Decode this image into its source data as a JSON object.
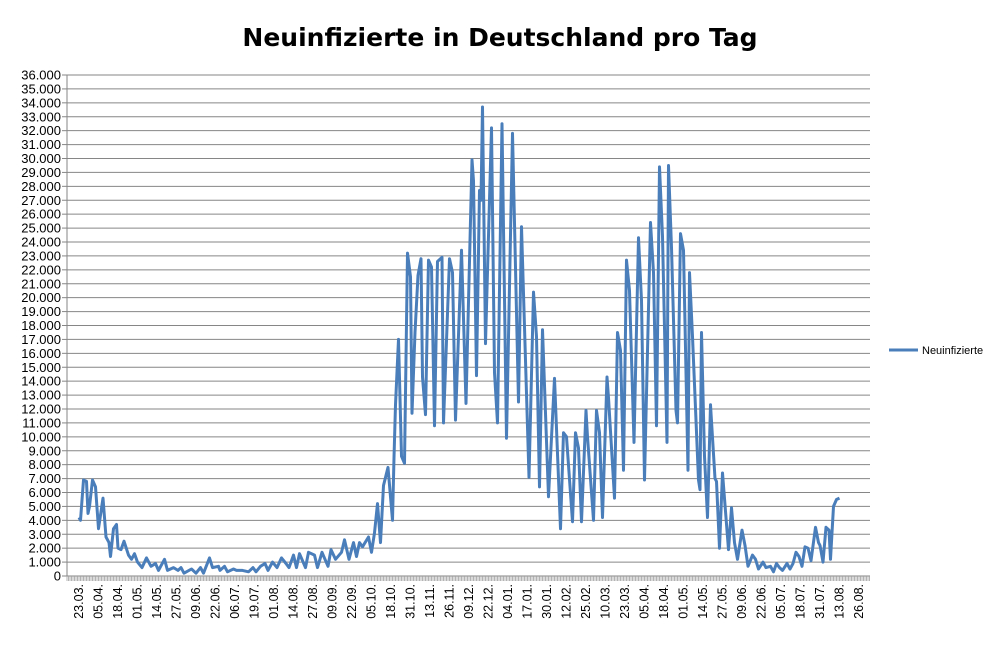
{
  "chart_data": {
    "type": "line",
    "title": "Neuinfizierte in Deutschland pro Tag",
    "xlabel": "",
    "ylabel": "",
    "ylim": [
      0,
      36000
    ],
    "grid": true,
    "legend_position": "right",
    "line_color": "#4A7EBB",
    "grid_color": "#868686",
    "y_tick_labels": [
      "0",
      "1.000",
      "2.000",
      "3.000",
      "4.000",
      "5.000",
      "6.000",
      "7.000",
      "8.000",
      "9.000",
      "10.000",
      "11.000",
      "12.000",
      "13.000",
      "14.000",
      "15.000",
      "16.000",
      "17.000",
      "18.000",
      "19.000",
      "20.000",
      "21.000",
      "22.000",
      "23.000",
      "24.000",
      "25.000",
      "26.000",
      "27.000",
      "28.000",
      "29.000",
      "30.000",
      "31.000",
      "32.000",
      "33.000",
      "34.000",
      "35.000",
      "36.000"
    ],
    "x_tick_labels": [
      "23.03.",
      "05.04.",
      "18.04.",
      "01.05.",
      "14.05.",
      "27.05.",
      "09.06.",
      "22.06.",
      "06.07.",
      "19.07.",
      "01.08.",
      "14.08.",
      "27.08.",
      "09.09.",
      "22.09.",
      "05.10.",
      "18.10.",
      "31.10.",
      "13.11.",
      "26.11.",
      "09.12.",
      "22.12.",
      "04.01.",
      "17.01.",
      "30.01.",
      "12.02.",
      "25.02.",
      "10.03.",
      "23.03.",
      "05.04.",
      "18.04.",
      "01.05.",
      "14.05.",
      "27.05.",
      "09.06.",
      "22.06.",
      "05.07.",
      "18.07.",
      "31.07.",
      "13.08.",
      "26.08."
    ],
    "x": [
      "2020-03-23",
      "2020-03-24",
      "2020-03-26",
      "2020-03-28",
      "2020-03-29",
      "2020-03-30",
      "2020-04-01",
      "2020-04-03",
      "2020-04-05",
      "2020-04-08",
      "2020-04-10",
      "2020-04-12",
      "2020-04-13",
      "2020-04-15",
      "2020-04-17",
      "2020-04-18",
      "2020-04-20",
      "2020-04-22",
      "2020-04-25",
      "2020-04-27",
      "2020-04-29",
      "2020-05-01",
      "2020-05-04",
      "2020-05-07",
      "2020-05-10",
      "2020-05-13",
      "2020-05-15",
      "2020-05-19",
      "2020-05-21",
      "2020-05-25",
      "2020-05-28",
      "2020-05-30",
      "2020-06-01",
      "2020-06-06",
      "2020-06-09",
      "2020-06-12",
      "2020-06-14",
      "2020-06-18",
      "2020-06-20",
      "2020-06-24",
      "2020-06-25",
      "2020-06-28",
      "2020-06-30",
      "2020-07-04",
      "2020-07-06",
      "2020-07-10",
      "2020-07-14",
      "2020-07-17",
      "2020-07-19",
      "2020-07-22",
      "2020-07-25",
      "2020-07-27",
      "2020-07-30",
      "2020-08-02",
      "2020-08-05",
      "2020-08-08",
      "2020-08-10",
      "2020-08-13",
      "2020-08-15",
      "2020-08-17",
      "2020-08-21",
      "2020-08-23",
      "2020-08-27",
      "2020-08-29",
      "2020-09-01",
      "2020-09-05",
      "2020-09-07",
      "2020-09-10",
      "2020-09-14",
      "2020-09-16",
      "2020-09-19",
      "2020-09-22",
      "2020-09-24",
      "2020-09-26",
      "2020-09-28",
      "2020-10-02",
      "2020-10-04",
      "2020-10-06",
      "2020-10-08",
      "2020-10-10",
      "2020-10-12",
      "2020-10-15",
      "2020-10-18",
      "2020-10-19",
      "2020-10-20",
      "2020-10-22",
      "2020-10-24",
      "2020-10-26",
      "2020-10-28",
      "2020-10-30",
      "2020-10-31",
      "2020-11-02",
      "2020-11-04",
      "2020-11-06",
      "2020-11-07",
      "2020-11-09",
      "2020-11-11",
      "2020-11-13",
      "2020-11-15",
      "2020-11-17",
      "2020-11-20",
      "2020-11-21",
      "2020-11-25",
      "2020-11-27",
      "2020-11-29",
      "2020-12-03",
      "2020-12-06",
      "2020-12-10",
      "2020-12-11",
      "2020-12-13",
      "2020-12-15",
      "2020-12-16",
      "2020-12-17",
      "2020-12-19",
      "2020-12-23",
      "2020-12-25",
      "2020-12-27",
      "2020-12-30",
      "2021-01-02",
      "2021-01-06",
      "2021-01-10",
      "2021-01-12",
      "2021-01-17",
      "2021-01-20",
      "2021-01-22",
      "2021-01-24",
      "2021-01-26",
      "2021-01-30",
      "2021-02-03",
      "2021-02-07",
      "2021-02-09",
      "2021-02-11",
      "2021-02-15",
      "2021-02-17",
      "2021-02-19",
      "2021-02-21",
      "2021-02-24",
      "2021-02-25",
      "2021-03-01",
      "2021-03-03",
      "2021-03-05",
      "2021-03-07",
      "2021-03-10",
      "2021-03-11",
      "2021-03-15",
      "2021-03-17",
      "2021-03-19",
      "2021-03-21",
      "2021-03-23",
      "2021-03-25",
      "2021-03-28",
      "2021-03-31",
      "2021-04-02",
      "2021-04-04",
      "2021-04-08",
      "2021-04-10",
      "2021-04-12",
      "2021-04-14",
      "2021-04-16",
      "2021-04-19",
      "2021-04-20",
      "2021-04-22",
      "2021-04-25",
      "2021-04-26",
      "2021-04-28",
      "2021-04-30",
      "2021-05-03",
      "2021-05-04",
      "2021-05-06",
      "2021-05-10",
      "2021-05-11",
      "2021-05-12",
      "2021-05-14",
      "2021-05-16",
      "2021-05-18",
      "2021-05-21",
      "2021-05-22",
      "2021-05-24",
      "2021-05-26",
      "2021-05-30",
      "2021-06-01",
      "2021-06-03",
      "2021-06-05",
      "2021-06-08",
      "2021-06-10",
      "2021-06-12",
      "2021-06-15",
      "2021-06-17",
      "2021-06-19",
      "2021-06-22",
      "2021-06-24",
      "2021-06-27",
      "2021-06-29",
      "2021-07-01",
      "2021-07-03",
      "2021-07-05",
      "2021-07-08",
      "2021-07-10",
      "2021-07-12",
      "2021-07-14",
      "2021-07-16",
      "2021-07-18",
      "2021-07-20",
      "2021-07-22",
      "2021-07-24",
      "2021-07-27",
      "2021-07-29",
      "2021-07-30",
      "2021-08-01",
      "2021-08-03",
      "2021-08-05",
      "2021-08-06",
      "2021-08-08",
      "2021-08-10",
      "2021-08-12"
    ],
    "series": [
      {
        "name": "Neuinfizierte",
        "values": [
          4200,
          4000,
          6900,
          6800,
          4500,
          5000,
          6900,
          6400,
          3400,
          5600,
          2800,
          2400,
          1400,
          3400,
          3700,
          2000,
          1900,
          2500,
          1500,
          1200,
          1600,
          1000,
          600,
          1300,
          700,
          900,
          400,
          1200,
          400,
          600,
          400,
          600,
          200,
          500,
          200,
          600,
          200,
          1300,
          600,
          700,
          400,
          700,
          300,
          500,
          400,
          400,
          300,
          600,
          300,
          700,
          900,
          400,
          1000,
          600,
          1300,
          900,
          600,
          1500,
          600,
          1600,
          600,
          1700,
          1500,
          600,
          1700,
          700,
          1900,
          1200,
          1700,
          2600,
          1200,
          2400,
          1400,
          2400,
          2100,
          2800,
          1700,
          3100,
          5200,
          2400,
          6500,
          7800,
          4000,
          8500,
          12300,
          17000,
          8600,
          8100,
          23200,
          21500,
          11700,
          17500,
          21600,
          22800,
          14300,
          11600,
          22700,
          22200,
          10800,
          22600,
          22900,
          11000,
          22800,
          21800,
          11200,
          23400,
          12400,
          29900,
          28400,
          14400,
          27700,
          27000,
          33700,
          16700,
          32200,
          14600,
          11000,
          32500,
          9900,
          31800,
          12500,
          25100,
          7100,
          20400,
          17200,
          6400,
          17700,
          5700,
          14200,
          3400,
          10300,
          10000,
          3900,
          10300,
          9200,
          3900,
          11900,
          10000,
          4000,
          11900,
          10300,
          4200,
          14300,
          12800,
          5600,
          17500,
          16200,
          7600,
          22700,
          20500,
          9600,
          24300,
          19800,
          6900,
          25400,
          21800,
          10800,
          29400,
          24400,
          9600,
          29500,
          23600,
          11900,
          11000,
          24600,
          23400,
          7600,
          21800,
          17200,
          6900,
          6200,
          17500,
          8600,
          4200,
          12300,
          7000,
          6800,
          2000,
          7400,
          1900,
          4900,
          2400,
          1200,
          3300,
          2200,
          700,
          1500,
          1200,
          500,
          1000,
          600,
          700,
          300,
          900,
          600,
          400,
          900,
          500,
          900,
          1700,
          1400,
          700,
          2100,
          2000,
          1100,
          3500,
          2400,
          2200,
          1000,
          3500,
          3300,
          1200,
          5000,
          5500,
          5600
        ]
      }
    ]
  }
}
